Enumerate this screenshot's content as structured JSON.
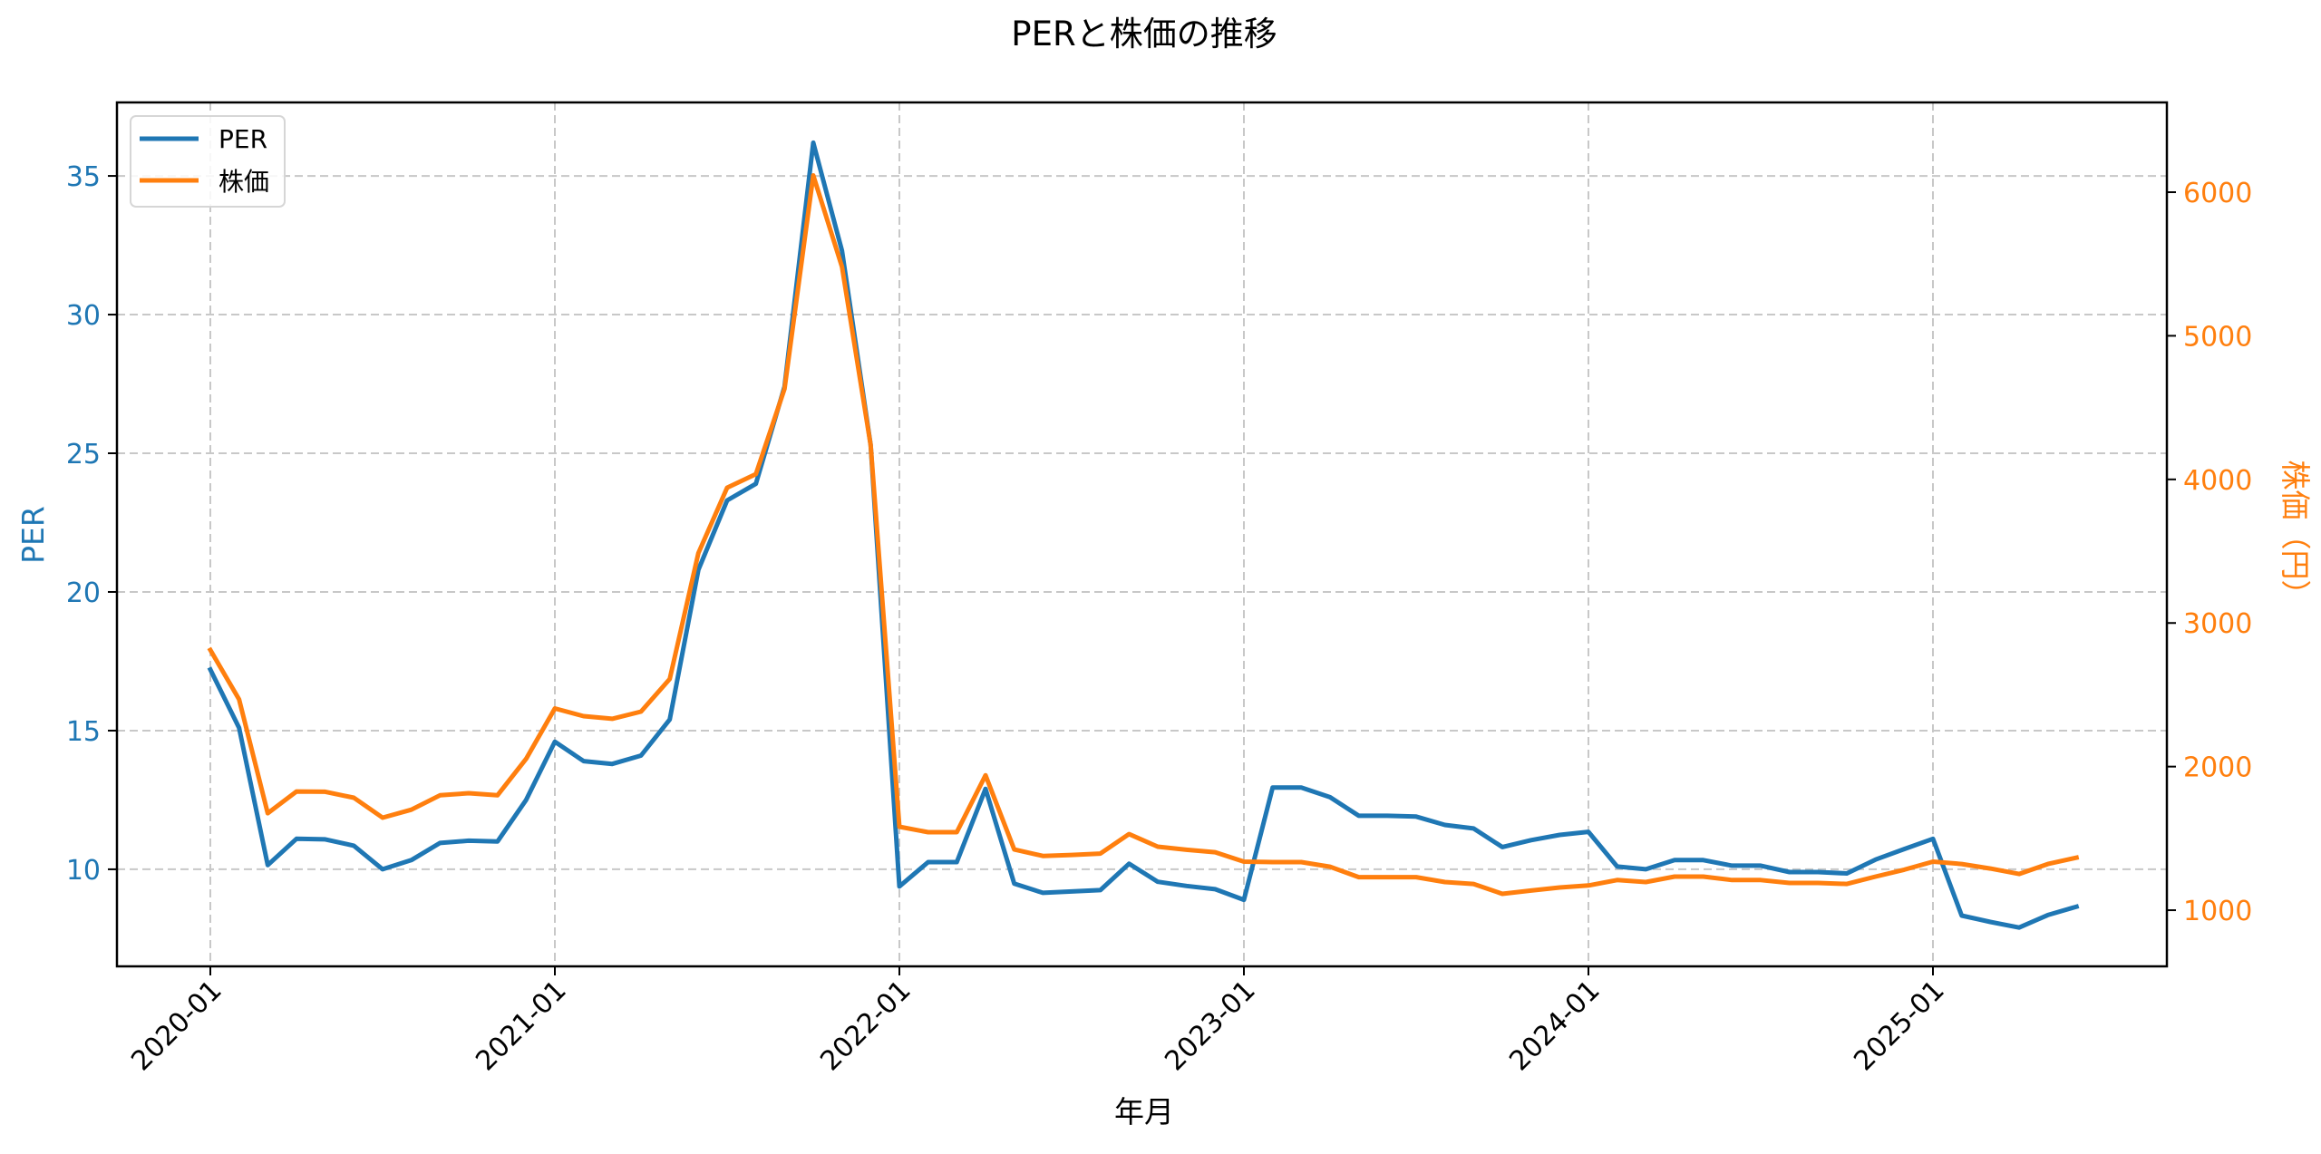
{
  "chart_data": {
    "type": "line",
    "title": "PERと株価の推移",
    "xlabel": "年月",
    "ylabel": "PER",
    "ylabel_right": "株価（円）",
    "x_ticks": [
      "2020-01",
      "2021-01",
      "2022-01",
      "2023-01",
      "2024-01",
      "2025-01"
    ],
    "y_ticks_left": [
      10,
      15,
      20,
      25,
      30,
      35
    ],
    "y_ticks_right": [
      1000,
      2000,
      3000,
      4000,
      5000,
      6000
    ],
    "ylim_left": [
      6.5,
      37.65
    ],
    "ylim_right": [
      609,
      6625
    ],
    "grid": true,
    "legend_position": "upper left",
    "x": [
      "2020-01",
      "2020-02",
      "2020-03",
      "2020-04",
      "2020-05",
      "2020-06",
      "2020-07",
      "2020-08",
      "2020-09",
      "2020-10",
      "2020-11",
      "2020-12",
      "2021-01",
      "2021-02",
      "2021-03",
      "2021-04",
      "2021-05",
      "2021-06",
      "2021-07",
      "2021-08",
      "2021-09",
      "2021-10",
      "2021-11",
      "2021-12",
      "2022-01",
      "2022-02",
      "2022-03",
      "2022-04",
      "2022-05",
      "2022-06",
      "2022-07",
      "2022-08",
      "2022-09",
      "2022-10",
      "2022-11",
      "2022-12",
      "2023-01",
      "2023-02",
      "2023-03",
      "2023-04",
      "2023-05",
      "2023-06",
      "2023-07",
      "2023-08",
      "2023-09",
      "2023-10",
      "2023-11",
      "2023-12",
      "2024-01",
      "2024-02",
      "2024-03",
      "2024-04",
      "2024-05",
      "2024-06",
      "2024-07",
      "2024-08",
      "2024-09",
      "2024-10",
      "2024-11",
      "2024-12",
      "2025-01",
      "2025-02",
      "2025-03",
      "2025-04",
      "2025-05",
      "2025-06"
    ],
    "series": [
      {
        "name": "PER",
        "axis": "left",
        "color": "#1f77b4",
        "values": [
          17.2,
          15.1,
          10.15,
          11.1,
          11.08,
          10.85,
          10.0,
          10.33,
          10.95,
          11.03,
          11.0,
          12.5,
          14.6,
          13.9,
          13.8,
          14.1,
          15.4,
          20.8,
          23.3,
          23.9,
          27.4,
          36.2,
          32.3,
          25.3,
          9.38,
          10.26,
          10.26,
          12.9,
          9.48,
          9.15,
          9.2,
          9.25,
          10.2,
          9.55,
          9.4,
          9.28,
          8.9,
          12.95,
          12.95,
          12.6,
          11.93,
          11.93,
          11.9,
          11.6,
          11.47,
          10.8,
          11.05,
          11.24,
          11.35,
          10.1,
          10.0,
          10.33,
          10.33,
          10.13,
          10.13,
          9.9,
          9.9,
          9.85,
          10.35,
          10.73,
          11.1,
          8.33,
          8.1,
          7.9,
          8.35,
          8.65
        ]
      },
      {
        "name": "株価",
        "axis": "right",
        "color": "#ff7f0e",
        "values": [
          2812,
          2468,
          1675,
          1827,
          1825,
          1783,
          1644,
          1700,
          1800,
          1815,
          1800,
          2054,
          2405,
          2351,
          2333,
          2383,
          2610,
          3487,
          3942,
          4037,
          4630,
          6117,
          5480,
          4240,
          1581,
          1543,
          1543,
          1940,
          1423,
          1378,
          1385,
          1394,
          1530,
          1442,
          1421,
          1404,
          1338,
          1335,
          1335,
          1303,
          1230,
          1230,
          1230,
          1196,
          1183,
          1114,
          1137,
          1158,
          1172,
          1210,
          1196,
          1234,
          1234,
          1210,
          1210,
          1190,
          1190,
          1183,
          1234,
          1282,
          1338,
          1322,
          1290,
          1252,
          1322,
          1366
        ]
      }
    ]
  },
  "legend": {
    "items": [
      {
        "label": "PER",
        "color": "#1f77b4"
      },
      {
        "label": "株価",
        "color": "#ff7f0e"
      }
    ]
  },
  "colors": {
    "left_axis": "#1f77b4",
    "right_axis": "#ff7f0e",
    "grid": "#c8c8c8",
    "frame": "#000000"
  }
}
